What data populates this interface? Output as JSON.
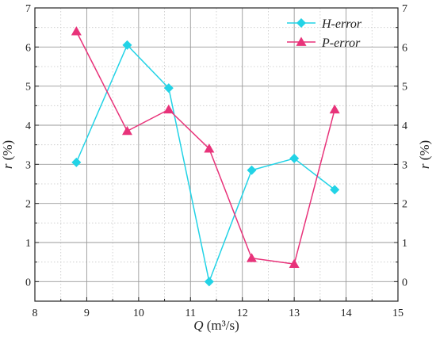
{
  "chart_data": {
    "type": "line",
    "title": "",
    "x": [
      8.8,
      9.78,
      10.58,
      11.36,
      12.18,
      13.0,
      13.78
    ],
    "series": [
      {
        "name": "H-error",
        "values": [
          3.05,
          6.05,
          4.95,
          0.0,
          2.85,
          3.15,
          2.35
        ],
        "color": "#22d3e6",
        "marker": "diamond"
      },
      {
        "name": "P-error",
        "values": [
          6.4,
          3.85,
          4.4,
          3.4,
          0.6,
          0.45,
          4.4
        ],
        "color": "#e8337a",
        "marker": "triangle"
      }
    ],
    "xlabel": {
      "italic": "Q",
      "unit": "(m³/s)"
    },
    "ylabel": {
      "italic": "r",
      "unit": "(%)"
    },
    "xlim": [
      8,
      15
    ],
    "ylim": [
      -0.5,
      7
    ],
    "xticks": [
      "8",
      "9",
      "10",
      "11",
      "12",
      "13",
      "14",
      "15"
    ],
    "yticks": [
      "0",
      "1",
      "2",
      "3",
      "4",
      "5",
      "6",
      "7"
    ],
    "grid": true,
    "legend_position": "top-right",
    "right_axis_mirrored": true
  }
}
